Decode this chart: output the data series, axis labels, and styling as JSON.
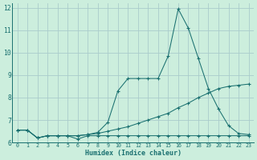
{
  "xlabel": "Humidex (Indice chaleur)",
  "bg_color": "#cceedd",
  "grid_color": "#aacccc",
  "line_color": "#1a7070",
  "xlim": [
    -0.5,
    23.5
  ],
  "ylim": [
    6,
    12.2
  ],
  "yticks": [
    6,
    7,
    8,
    9,
    10,
    11,
    12
  ],
  "xticks": [
    0,
    1,
    2,
    3,
    4,
    5,
    6,
    7,
    8,
    9,
    10,
    11,
    12,
    13,
    14,
    15,
    16,
    17,
    18,
    19,
    20,
    21,
    22,
    23
  ],
  "line1_x": [
    0,
    1,
    2,
    3,
    4,
    5,
    6,
    7,
    8,
    9,
    10,
    11,
    12,
    13,
    14,
    15,
    16,
    17,
    18,
    19,
    20,
    21,
    22,
    23
  ],
  "line1_y": [
    6.55,
    6.55,
    6.2,
    6.3,
    6.3,
    6.3,
    6.15,
    6.3,
    6.3,
    6.3,
    6.3,
    6.3,
    6.3,
    6.3,
    6.3,
    6.3,
    6.3,
    6.3,
    6.3,
    6.3,
    6.3,
    6.3,
    6.3,
    6.3
  ],
  "line2_x": [
    0,
    1,
    2,
    3,
    4,
    5,
    6,
    7,
    8,
    9,
    10,
    11,
    12,
    13,
    14,
    15,
    16,
    17,
    18,
    19,
    20,
    21,
    22,
    23
  ],
  "line2_y": [
    6.55,
    6.55,
    6.2,
    6.3,
    6.3,
    6.3,
    6.3,
    6.35,
    6.4,
    6.5,
    6.6,
    6.7,
    6.85,
    7.0,
    7.15,
    7.3,
    7.55,
    7.75,
    8.0,
    8.2,
    8.4,
    8.5,
    8.55,
    8.6
  ],
  "line3_x": [
    0,
    1,
    2,
    3,
    4,
    5,
    6,
    7,
    8,
    9,
    10,
    11,
    12,
    13,
    14,
    15,
    16,
    17,
    18,
    19,
    20,
    21,
    22,
    23
  ],
  "line3_y": [
    6.55,
    6.55,
    6.2,
    6.3,
    6.3,
    6.3,
    6.3,
    6.35,
    6.45,
    6.9,
    8.3,
    8.85,
    8.85,
    8.85,
    8.85,
    9.85,
    11.95,
    11.1,
    9.75,
    8.4,
    7.5,
    6.75,
    6.4,
    6.35
  ]
}
